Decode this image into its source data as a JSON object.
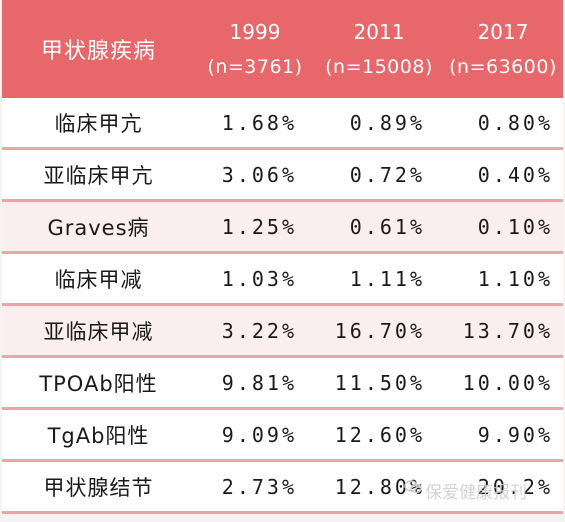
{
  "table": {
    "header": {
      "title": "甲状腺疾病",
      "columns": [
        {
          "year": "1999",
          "n": "(n=3761)"
        },
        {
          "year": "2011",
          "n": "(n=15008)"
        },
        {
          "year": "2017",
          "n": "(n=63600)"
        }
      ]
    },
    "rows": [
      {
        "name": "临床甲亢",
        "v1999": "1.68%",
        "v2011": "0.89%",
        "v2017": "0.80%"
      },
      {
        "name": "亚临床甲亢",
        "v1999": "3.06%",
        "v2011": "0.72%",
        "v2017": "0.40%"
      },
      {
        "name": "Graves病",
        "v1999": "1.25%",
        "v2011": "0.61%",
        "v2017": "0.10%"
      },
      {
        "name": "临床甲减",
        "v1999": "1.03%",
        "v2011": "1.11%",
        "v2017": "1.10%"
      },
      {
        "name": "亚临床甲减",
        "v1999": "3.22%",
        "v2011": "16.70%",
        "v2017": "13.70%"
      },
      {
        "name": "TPOAb阳性",
        "v1999": "9.81%",
        "v2011": "11.50%",
        "v2017": "10.00%"
      },
      {
        "name": "TgAb阳性",
        "v1999": "9.09%",
        "v2011": "12.60%",
        "v2017": "9.90%"
      },
      {
        "name": "甲状腺结节",
        "v1999": "2.73%",
        "v2011": "12.80%",
        "v2017": "20.2%"
      }
    ]
  },
  "watermark": {
    "text": "保爱健康报刊",
    "icon": "wechat-icon"
  },
  "colors": {
    "header_bg": "#e8676b",
    "row_pink": "#fbeeee",
    "row_divider": "#e7a6a7"
  }
}
